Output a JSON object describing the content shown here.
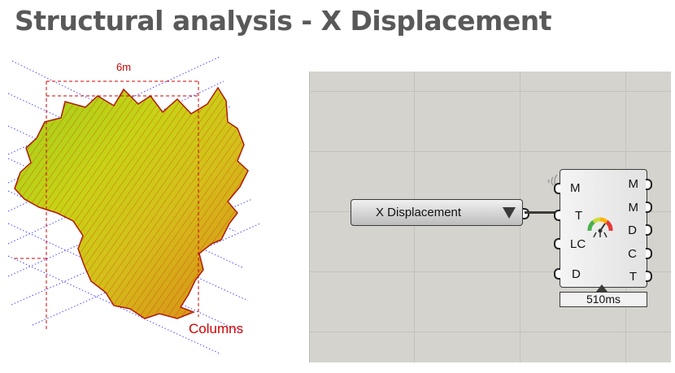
{
  "title": "Structural analysis - X Displacement",
  "viz": {
    "dimension_label": "6m",
    "columns_label": "Columns"
  },
  "panel": {
    "label": "X Displacement"
  },
  "component": {
    "inputs": [
      "M",
      "T",
      "LC",
      "D"
    ],
    "outputs": [
      "M",
      "M",
      "D",
      "C",
      "T"
    ],
    "timer": "510ms"
  },
  "colors": {
    "title": "#595959",
    "annotation": "#d40000",
    "canvas": "#d5d3cd",
    "grid_lines": "#4a4aff"
  },
  "icons": [
    "dropdown-arrow-icon",
    "gauge-icon",
    "wifi-icon"
  ]
}
